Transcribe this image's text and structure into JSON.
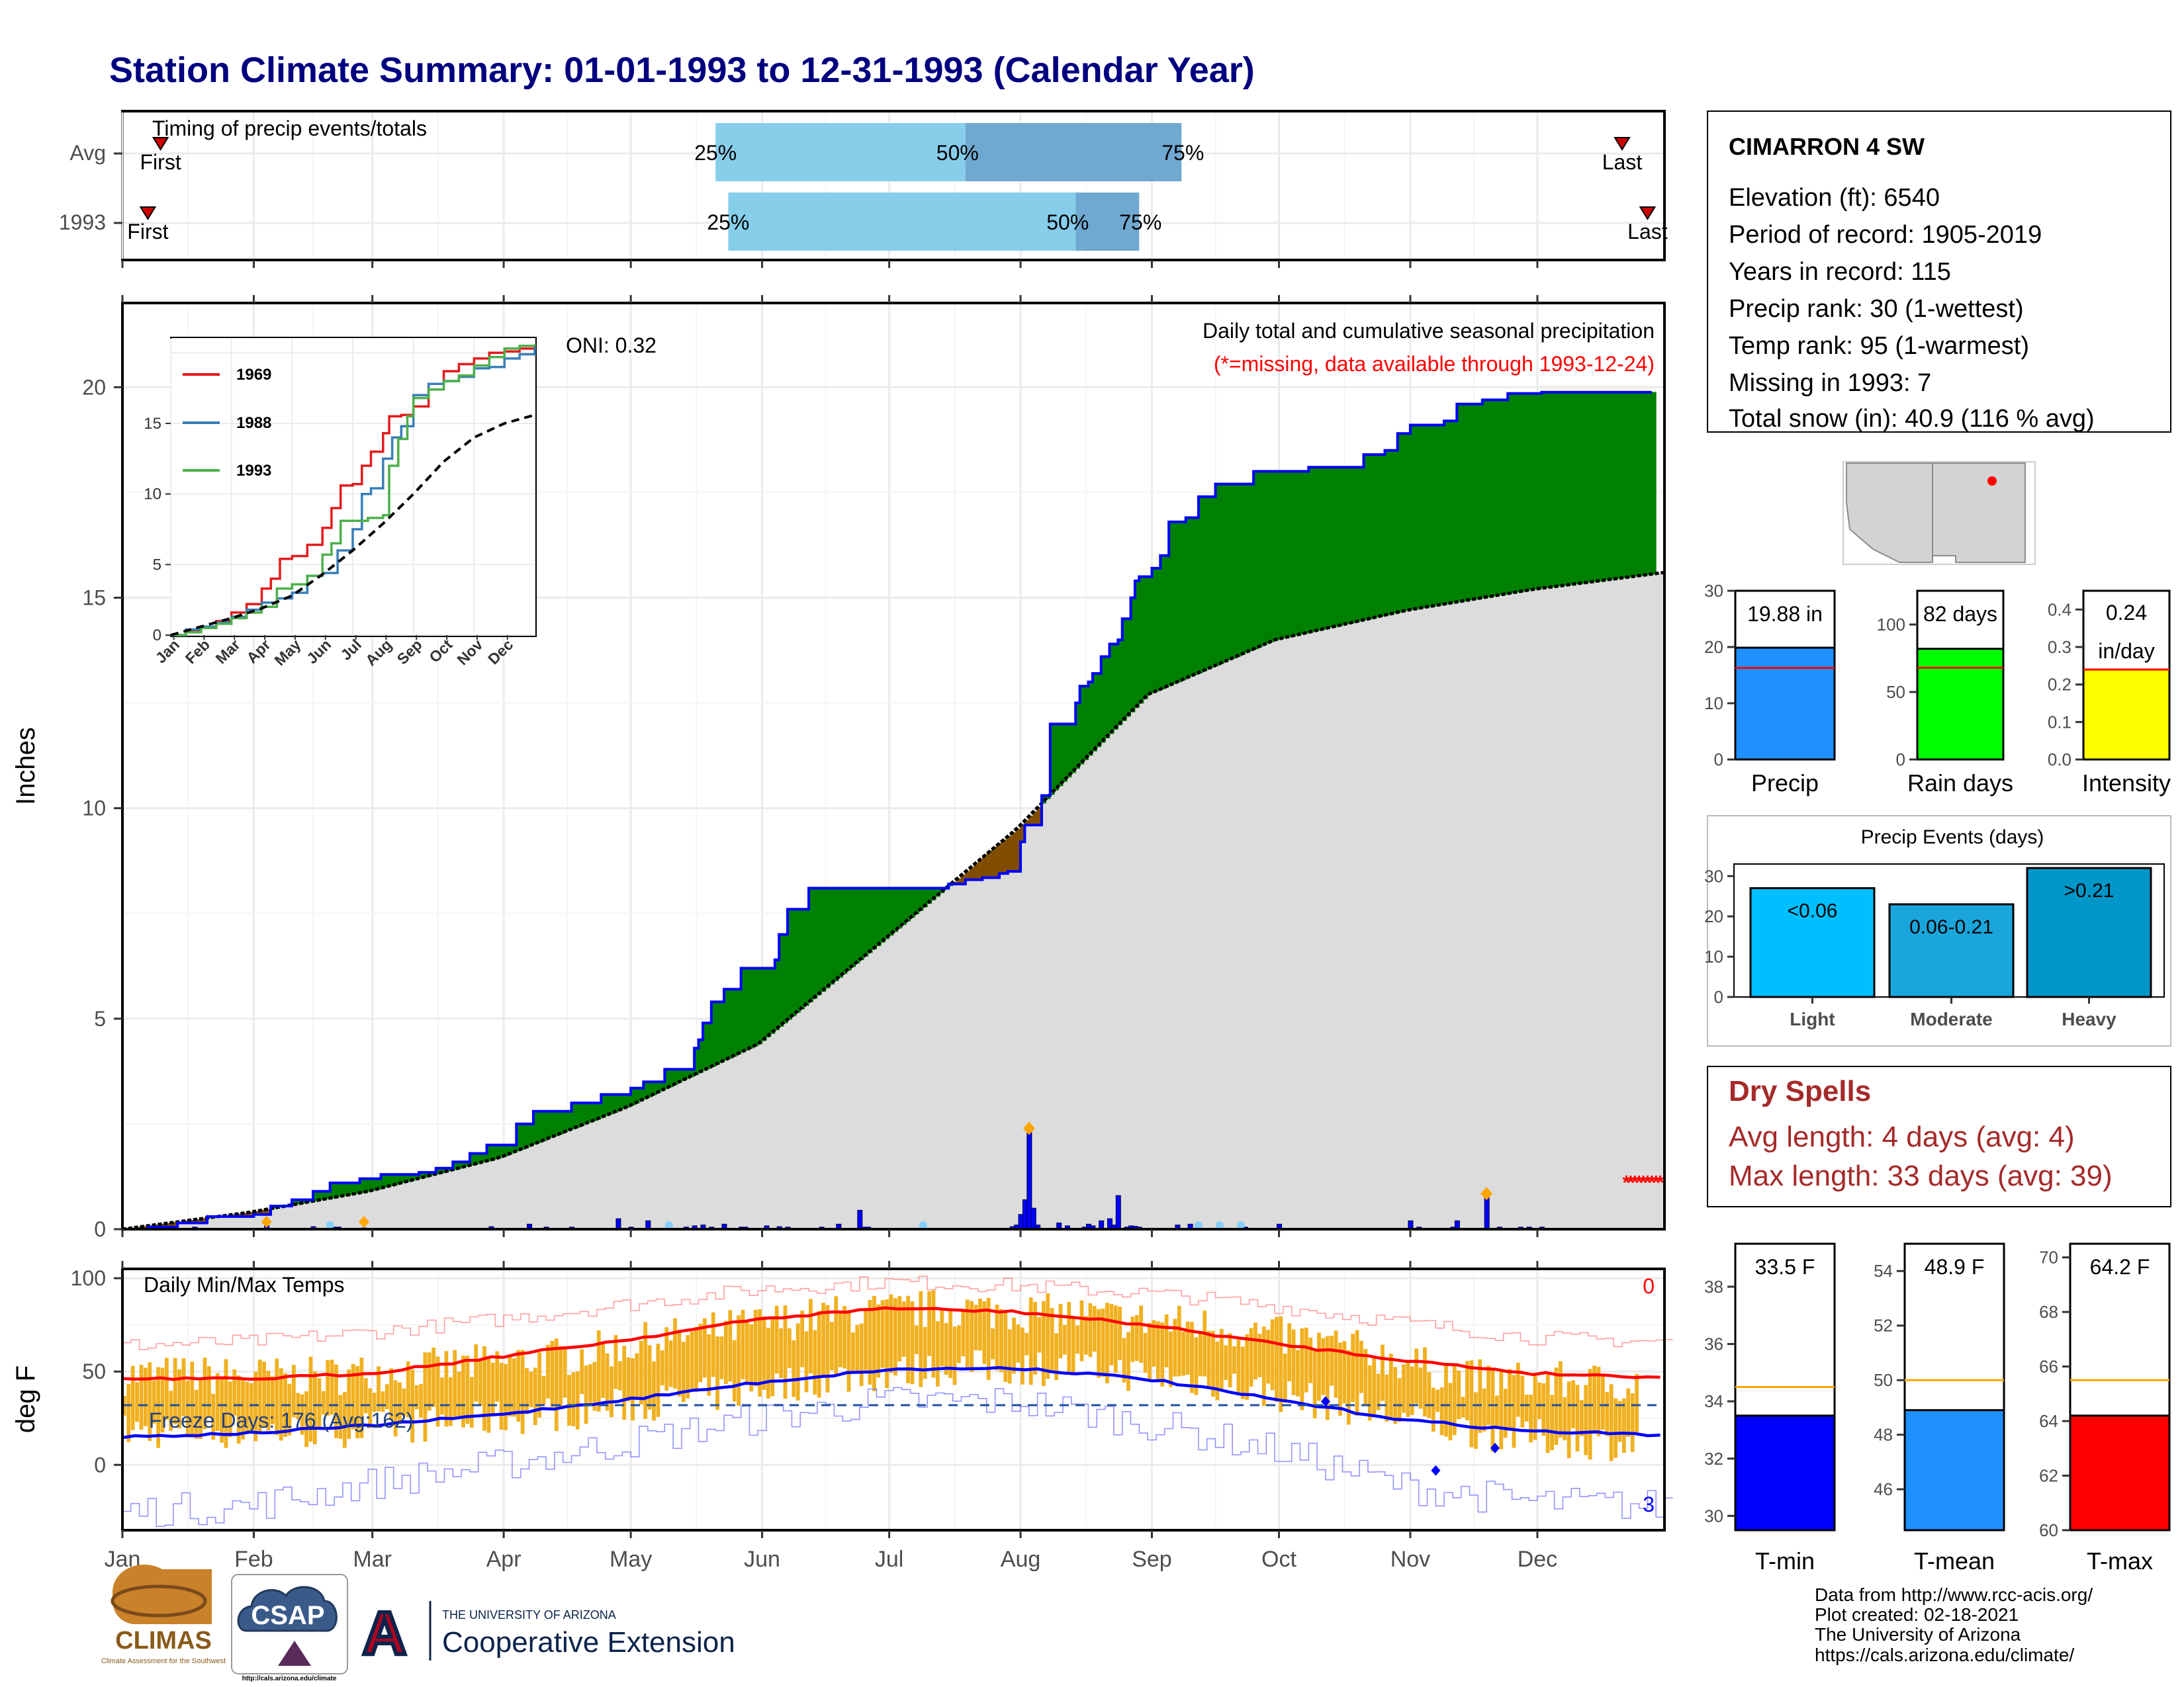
{
  "title": "Station Climate Summary: 01-01-1993 to 12-31-1993 (Calendar Year)",
  "colors": {
    "title": "#00007f",
    "cum_gray": "#dcdcdc",
    "surplus": "#008000",
    "deficit": "#7f4c00",
    "obs_line": "#0000ff",
    "avg_line": "#000000",
    "bar_blue": "#0000ff",
    "tmin_bar": "#0000ff",
    "tmean_bar": "#1e90ff",
    "tmax_bar": "#ff0000",
    "precip_bar": "#1e90ff",
    "rain_bar": "#00ff00",
    "intens_bar": "#ffff00",
    "light": "#00bfff",
    "moderate": "#1aa6dc",
    "heavy": "#0096c8",
    "band_light": "#87ceeb",
    "band_dark": "#6fa8d0",
    "dry_text": "#a52a2a",
    "temp_bars": "#f0b020",
    "red_line": "#ff0000",
    "blue_line": "#0000ff",
    "series_1969": "#e31a1c",
    "series_1988": "#377eb8",
    "series_1993": "#4daf4a"
  },
  "timing": {
    "label": "Timing of precip events/totals",
    "rows": [
      {
        "name": "Avg",
        "first_doy": 10,
        "q25_doy": 141,
        "q50_doy": 200,
        "q75_doy": 251,
        "last_doy": 355
      },
      {
        "name": "1993",
        "first_doy": 7,
        "q25_doy": 144,
        "q50_doy": 226,
        "q75_doy": 241,
        "last_doy": 361
      }
    ],
    "first_label": "First",
    "last_label": "Last",
    "q25_label": "25%",
    "q50_label": "50%",
    "q75_label": "75%"
  },
  "station": {
    "name": "CIMARRON 4 SW",
    "lines": [
      "Elevation (ft): 6540",
      "Period of record: 1905-2019",
      "Years in record: 115",
      "Precip rank: 30 (1-wettest)",
      "Temp rank: 95 (1-warmest)",
      "Missing in 1993: 7",
      "Total snow (in): 40.9 (116 % avg)"
    ]
  },
  "precip_panel": {
    "title": "Daily total and cumulative seasonal precipitation",
    "note": "(*=missing, data available through 1993-12-24)",
    "oni": "ONI: 0.32",
    "ylabel": "Inches",
    "yticks": [
      "0",
      "5",
      "10",
      "15",
      "20"
    ]
  },
  "temp_panel": {
    "title": "Daily Min/Max Temps",
    "ylabel": "deg F",
    "yticks": [
      "0",
      "50",
      "100"
    ],
    "freeze": "Freeze Days: 176 (Avg:162)",
    "top_count": "0",
    "bottom_count": "3"
  },
  "months": [
    "Jan",
    "Feb",
    "Mar",
    "Apr",
    "May",
    "Jun",
    "Jul",
    "Aug",
    "Sep",
    "Oct",
    "Nov",
    "Dec"
  ],
  "inset": {
    "months": [
      "Jan",
      "Feb",
      "Mar",
      "Apr",
      "May",
      "Jun",
      "Jul",
      "Aug",
      "Sep",
      "Oct",
      "Nov",
      "Dec"
    ],
    "yticks": [
      "0",
      "5",
      "10",
      "15"
    ],
    "legend": [
      "1969",
      "1988",
      "1993"
    ]
  },
  "bars_top": {
    "precip": {
      "label": "Precip",
      "value_label": "19.88 in",
      "ticks": [
        "0",
        "10",
        "20",
        "30"
      ]
    },
    "rain": {
      "label": "Rain days",
      "value_label": "82 days",
      "ticks": [
        "0",
        "50",
        "100"
      ]
    },
    "intensity": {
      "label": "Intensity",
      "value_label": "0.24",
      "value_label2": "in/day",
      "ticks": [
        "0.0",
        "0.1",
        "0.2",
        "0.3",
        "0.4"
      ]
    }
  },
  "events": {
    "title": "Precip Events (days)",
    "ticks": [
      "0",
      "10",
      "20",
      "30"
    ],
    "bars": [
      {
        "label": "Light",
        "inner": "<0.06"
      },
      {
        "label": "Moderate",
        "inner": "0.06-0.21"
      },
      {
        "label": "Heavy",
        "inner": ">0.21"
      }
    ]
  },
  "dry": {
    "title": "Dry Spells",
    "avg": "Avg length: 4 days (avg: 4)",
    "max": "Max length: 33 days (avg: 39)"
  },
  "temps_bottom": {
    "tmin": {
      "label": "T-min",
      "value_label": "33.5 F",
      "ticks": [
        "30",
        "32",
        "34",
        "36",
        "38"
      ]
    },
    "tmean": {
      "label": "T-mean",
      "value_label": "48.9 F",
      "ticks": [
        "46",
        "48",
        "50",
        "52",
        "54"
      ]
    },
    "tmax": {
      "label": "T-max",
      "value_label": "64.2 F",
      "ticks": [
        "60",
        "62",
        "64",
        "66",
        "68",
        "70"
      ]
    }
  },
  "logos": {
    "climas": "CLIMAS",
    "climas_small": "Climate Assessment for the Southwest",
    "csap": "CSAP",
    "csap_url": "http://cals.arizona.edu/climate",
    "ua_small": "THE UNIVERSITY OF ARIZONA",
    "ua_big": "Cooperative Extension",
    "ua_mark": "A"
  },
  "footer": [
    "Data from http://www.rcc-acis.org/",
    "Plot created: 02-18-2021",
    "The University of Arizona",
    "https://cals.arizona.edu/climate/"
  ],
  "chart_data": [
    {
      "type": "area",
      "name": "cumulative precipitation",
      "title": "Daily total and cumulative seasonal precipitation",
      "ylabel": "Inches",
      "ylim": [
        0,
        22
      ],
      "x_units": "day of year 1993",
      "observed_cumulative": {
        "x": [
          1,
          7,
          14,
          21,
          32,
          36,
          41,
          46,
          50,
          57,
          62,
          71,
          75,
          79,
          83,
          87,
          94,
          98,
          107,
          114,
          121,
          124,
          129,
          136,
          137,
          138,
          140,
          143,
          147,
          155,
          156,
          158,
          163,
          175,
          196,
          200,
          204,
          208,
          210,
          213,
          214,
          218,
          220,
          226,
          227,
          229,
          230,
          232,
          234,
          236,
          237,
          239,
          240,
          241,
          244,
          246,
          248,
          252,
          255,
          259,
          268,
          281,
          294,
          299,
          302,
          305,
          313,
          316,
          322,
          328,
          336,
          362
        ],
        "y": [
          0.0,
          0.05,
          0.15,
          0.3,
          0.35,
          0.55,
          0.7,
          0.9,
          1.1,
          1.2,
          1.3,
          1.35,
          1.45,
          1.6,
          1.8,
          2.0,
          2.5,
          2.8,
          3.0,
          3.2,
          3.35,
          3.5,
          3.8,
          4.3,
          4.5,
          4.9,
          5.4,
          5.7,
          6.2,
          6.4,
          7.0,
          7.6,
          8.1,
          8.1,
          8.2,
          8.3,
          8.35,
          8.45,
          8.5,
          9.2,
          9.6,
          10.3,
          12.0,
          12.5,
          12.9,
          13.0,
          13.2,
          13.6,
          13.9,
          14.0,
          14.5,
          15.0,
          15.4,
          15.5,
          15.7,
          16.0,
          16.8,
          16.9,
          17.4,
          17.7,
          18.0,
          18.1,
          18.4,
          18.5,
          18.9,
          19.1,
          19.2,
          19.6,
          19.7,
          19.85,
          19.88,
          19.88
        ]
      },
      "average_cumulative": {
        "x": [
          1,
          31,
          59,
          90,
          120,
          151,
          181,
          212,
          243,
          273,
          304,
          334,
          365
        ],
        "y": [
          0.0,
          0.4,
          0.9,
          1.7,
          2.9,
          4.4,
          6.9,
          9.5,
          12.7,
          14.0,
          14.7,
          15.2,
          15.6
        ]
      },
      "daily_precip": {
        "x": [
          8,
          18,
          35,
          46,
          51,
          52,
          58,
          88,
          97,
          101,
          107,
          118,
          121,
          125,
          134,
          136,
          138,
          140,
          143,
          147,
          148,
          153,
          156,
          158,
          170,
          166,
          175,
          176,
          177,
          211,
          212,
          213,
          214,
          215,
          216,
          217,
          222,
          224,
          228,
          229,
          230,
          232,
          234,
          235,
          236,
          238,
          239,
          240,
          241,
          250,
          253,
          260,
          266,
          274,
          305,
          307,
          315,
          316,
          323,
          326,
          331,
          333,
          336
        ],
        "y": [
          0.02,
          0.05,
          0.08,
          0.06,
          0.05,
          0.05,
          0.03,
          0.06,
          0.12,
          0.05,
          0.05,
          0.25,
          0.05,
          0.2,
          0.05,
          0.08,
          0.1,
          0.05,
          0.12,
          0.05,
          0.05,
          0.08,
          0.06,
          0.05,
          0.12,
          0.05,
          0.45,
          0.05,
          0.05,
          0.06,
          0.1,
          0.35,
          0.7,
          2.3,
          0.5,
          0.1,
          0.15,
          0.08,
          0.05,
          0.12,
          0.08,
          0.2,
          0.25,
          0.1,
          0.8,
          0.05,
          0.08,
          0.07,
          0.05,
          0.1,
          0.12,
          0.05,
          0.05,
          0.12,
          0.2,
          0.05,
          0.05,
          0.2,
          0.75,
          0.05,
          0.05,
          0.05,
          0.05
        ]
      }
    },
    {
      "type": "line",
      "name": "inset cumulative",
      "ylim": [
        0,
        21
      ],
      "series": [
        {
          "name": "1969",
          "x": [
            0,
            0.5,
            1,
            1.5,
            2,
            2.5,
            3,
            3.3,
            3.6,
            4,
            4.5,
            5,
            5.3,
            5.6,
            6,
            6.3,
            6.6,
            7,
            7.2,
            7.6,
            8,
            8.5,
            9,
            9.5,
            10,
            10.5,
            11,
            11.5,
            12
          ],
          "y": [
            0,
            0.3,
            0.5,
            1.0,
            1.6,
            2.2,
            3.3,
            4.0,
            5.4,
            5.6,
            6.4,
            7.6,
            9.0,
            10.6,
            10.7,
            12.0,
            13.0,
            14.3,
            15.5,
            15.6,
            16.2,
            17.8,
            18.7,
            19.2,
            19.6,
            20.0,
            20.1,
            20.3,
            20.5
          ]
        },
        {
          "name": "1988",
          "x": [
            0,
            0.5,
            1,
            1.5,
            2,
            2.5,
            3,
            3.5,
            4,
            4.5,
            5,
            5.5,
            6,
            6.3,
            6.6,
            7,
            7.3,
            7.6,
            8,
            8.5,
            9,
            9.5,
            10,
            10.5,
            11,
            11.5,
            12
          ],
          "y": [
            0,
            0.4,
            0.6,
            0.9,
            1.3,
            1.8,
            2.3,
            2.6,
            3.0,
            4.2,
            4.4,
            6.0,
            7.5,
            10.0,
            10.4,
            12.5,
            14.0,
            14.8,
            17.0,
            17.8,
            18.0,
            18.3,
            18.9,
            19.0,
            19.6,
            19.9,
            20.4
          ]
        },
        {
          "name": "1993",
          "x": [
            0,
            0.5,
            1,
            1.5,
            2,
            2.5,
            3,
            3.5,
            4,
            4.5,
            5,
            5.3,
            5.6,
            6,
            6.5,
            7,
            7.2,
            7.5,
            7.8,
            8,
            8.5,
            9,
            9.5,
            10,
            10.5,
            11,
            11.5,
            12
          ],
          "y": [
            0,
            0.2,
            0.5,
            0.8,
            1.2,
            1.6,
            2.0,
            3.3,
            3.6,
            4.2,
            5.7,
            6.5,
            8.1,
            8.1,
            8.3,
            8.5,
            12.0,
            13.9,
            15.5,
            16.8,
            17.4,
            18.0,
            18.4,
            19.1,
            19.7,
            20.3,
            20.5,
            20.6
          ]
        },
        {
          "name": "average",
          "x": [
            0,
            1,
            2,
            3,
            4,
            5,
            6,
            7,
            8,
            9,
            10,
            11,
            12
          ],
          "y": [
            0,
            0.6,
            1.2,
            1.9,
            2.8,
            4.3,
            6.0,
            7.9,
            10.0,
            12.3,
            14.0,
            15.0,
            15.6
          ]
        }
      ]
    },
    {
      "type": "line",
      "name": "daily temperatures",
      "title": "Daily Min/Max Temps",
      "ylabel": "deg F",
      "ylim": [
        -35,
        105
      ],
      "x_units": "day of year 1993",
      "freeze_line_f": 32,
      "normal_max": {
        "x": [
          1,
          31,
          59,
          90,
          120,
          151,
          181,
          212,
          243,
          273,
          304,
          334,
          365
        ],
        "y": [
          46,
          46,
          49,
          58,
          67,
          78,
          84,
          82,
          75,
          65,
          56,
          49,
          47
        ]
      },
      "normal_min": {
        "x": [
          1,
          31,
          59,
          90,
          120,
          151,
          181,
          212,
          243,
          273,
          304,
          334,
          365
        ],
        "y": [
          15,
          17,
          21,
          27,
          35,
          44,
          51,
          52,
          46,
          35,
          24,
          18,
          16
        ]
      },
      "record_max": {
        "x": [
          1,
          31,
          59,
          90,
          120,
          151,
          181,
          212,
          243,
          273,
          304,
          334,
          365
        ],
        "y": [
          64,
          66,
          71,
          78,
          86,
          94,
          98,
          96,
          92,
          85,
          76,
          68,
          66
        ]
      },
      "record_min": {
        "x": [
          1,
          31,
          59,
          90,
          120,
          151,
          181,
          212,
          243,
          273,
          304,
          334,
          365
        ],
        "y": [
          -25,
          -22,
          -10,
          0,
          12,
          25,
          34,
          34,
          22,
          8,
          -12,
          -20,
          -22
        ]
      },
      "observed_max_monthly": {
        "x": [
          15,
          45,
          74,
          105,
          135,
          166,
          196,
          227,
          258,
          288,
          319,
          349
        ],
        "y": [
          48,
          47,
          52,
          58,
          70,
          80,
          84,
          80,
          74,
          64,
          46,
          44
        ]
      },
      "observed_min_monthly": {
        "x": [
          15,
          45,
          74,
          105,
          135,
          166,
          196,
          227,
          258,
          288,
          319,
          349
        ],
        "y": [
          18,
          18,
          22,
          28,
          36,
          46,
          52,
          52,
          44,
          32,
          18,
          12
        ]
      },
      "record_min_marks": {
        "x": [
          285,
          311,
          325
        ],
        "y": [
          34,
          -3,
          9
        ]
      }
    },
    {
      "type": "bar",
      "name": "annual totals",
      "categories": [
        "Precip",
        "Rain days",
        "Intensity"
      ],
      "values": [
        19.88,
        82,
        0.24
      ],
      "averages": [
        16.3,
        68,
        0.24
      ],
      "ylims": [
        [
          0,
          30
        ],
        [
          0,
          125
        ],
        [
          0,
          0.45
        ]
      ]
    },
    {
      "type": "bar",
      "name": "Precip Events (days)",
      "title": "Precip Events (days)",
      "categories": [
        "Light",
        "Moderate",
        "Heavy"
      ],
      "values": [
        27,
        23,
        32
      ],
      "ylim": [
        0,
        33
      ]
    },
    {
      "type": "bar",
      "name": "annual temperatures",
      "categories": [
        "T-min",
        "T-mean",
        "T-max"
      ],
      "values": [
        33.5,
        48.9,
        64.2
      ],
      "averages": [
        34.5,
        50.0,
        65.5
      ],
      "ylims": [
        [
          29.5,
          39.5
        ],
        [
          44.5,
          55
        ],
        [
          60,
          70.5
        ]
      ]
    }
  ]
}
